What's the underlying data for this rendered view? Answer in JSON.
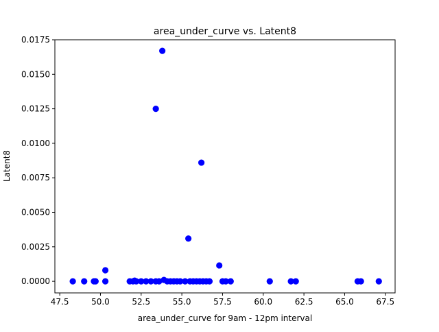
{
  "chart_data": {
    "type": "scatter",
    "title": "area_under_curve vs. Latent8",
    "xlabel": "area_under_curve for 9am - 12pm interval",
    "ylabel": "Latent8",
    "xlim": [
      47.2,
      68.1
    ],
    "ylim": [
      -0.00084,
      0.0175
    ],
    "xticks": [
      47.5,
      50.0,
      52.5,
      55.0,
      57.5,
      60.0,
      62.5,
      65.0,
      67.5
    ],
    "xtick_labels": [
      "47.5",
      "50.0",
      "52.5",
      "55.0",
      "57.5",
      "60.0",
      "62.5",
      "65.0",
      "67.5"
    ],
    "yticks": [
      0.0,
      0.0025,
      0.005,
      0.0075,
      0.01,
      0.0125,
      0.015,
      0.0175
    ],
    "ytick_labels": [
      "0.0000",
      "0.0025",
      "0.0050",
      "0.0075",
      "0.0100",
      "0.0125",
      "0.0150",
      "0.0175"
    ],
    "grid": false,
    "marker_color": "#0000ff",
    "series": [
      {
        "points": [
          [
            48.3,
            0.0
          ],
          [
            49.0,
            0.0
          ],
          [
            49.6,
            0.0
          ],
          [
            49.7,
            0.0
          ],
          [
            50.3,
            0.0008
          ],
          [
            50.3,
            0.0
          ],
          [
            51.8,
            0.0
          ],
          [
            52.0,
            0.0
          ],
          [
            52.1,
            5e-05
          ],
          [
            52.2,
            0.0
          ],
          [
            52.5,
            0.0
          ],
          [
            52.8,
            0.0
          ],
          [
            53.1,
            0.0
          ],
          [
            53.4,
            0.0125
          ],
          [
            53.4,
            0.0
          ],
          [
            53.6,
            0.0
          ],
          [
            53.8,
            0.0167
          ],
          [
            53.9,
            0.0001
          ],
          [
            54.1,
            0.0
          ],
          [
            54.3,
            0.0
          ],
          [
            54.5,
            0.0
          ],
          [
            54.7,
            0.0
          ],
          [
            54.9,
            0.0
          ],
          [
            55.2,
            0.0
          ],
          [
            55.4,
            0.0031
          ],
          [
            55.5,
            0.0
          ],
          [
            55.7,
            0.0
          ],
          [
            55.9,
            0.0
          ],
          [
            56.1,
            0.0
          ],
          [
            56.2,
            0.0086
          ],
          [
            56.3,
            0.0
          ],
          [
            56.5,
            0.0
          ],
          [
            56.7,
            0.0
          ],
          [
            57.3,
            0.00115
          ],
          [
            57.5,
            0.0
          ],
          [
            57.7,
            0.0
          ],
          [
            58.0,
            0.0
          ],
          [
            60.4,
            0.0
          ],
          [
            61.7,
            0.0
          ],
          [
            62.0,
            0.0
          ],
          [
            65.8,
            0.0
          ],
          [
            66.0,
            0.0
          ],
          [
            67.1,
            0.0
          ]
        ]
      }
    ]
  }
}
